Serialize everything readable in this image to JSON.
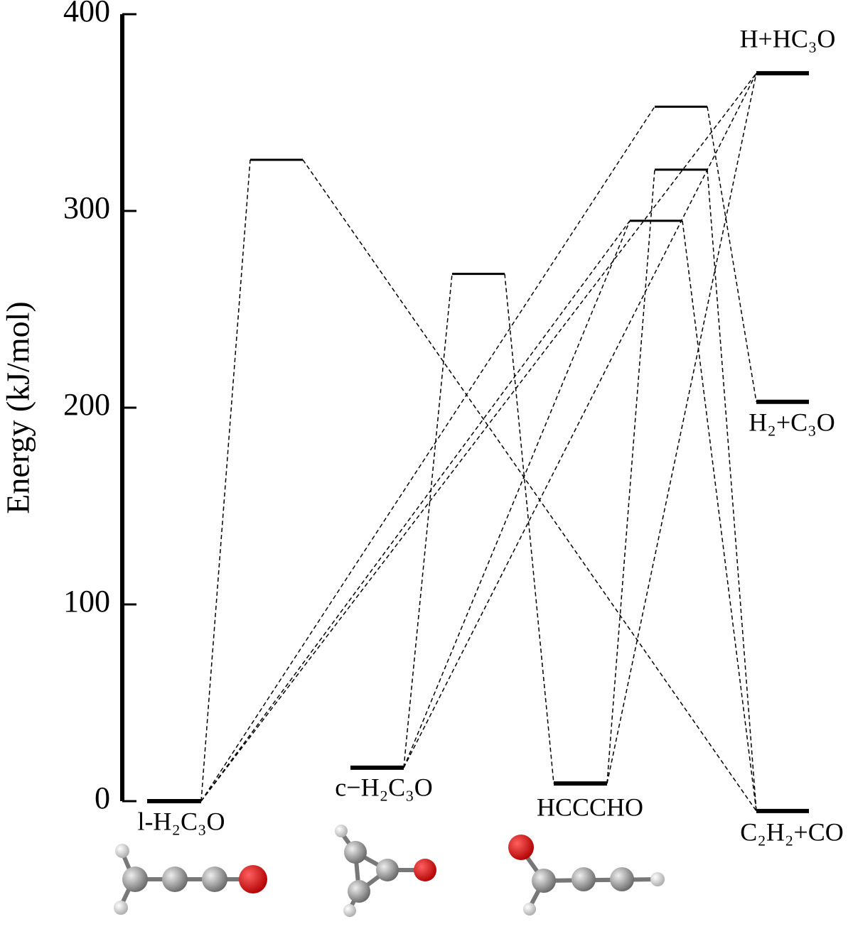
{
  "chart_data": {
    "type": "energy-level",
    "y_label": "Energy (kJ/mol)",
    "ylim": [
      0,
      400
    ],
    "yticks": [
      0,
      100,
      200,
      300,
      400
    ],
    "levels": [
      {
        "label": "l‑H₂C₃O",
        "energy": 0
      },
      {
        "energy": 326
      },
      {
        "label": "c−H₂C₃O",
        "energy": 17
      },
      {
        "energy": 268
      },
      {
        "label": "HCCCHO",
        "energy": 9
      },
      {
        "energy": 295
      },
      {
        "energy": 321
      },
      {
        "energy": 353
      },
      {
        "label": "H+HC₃O",
        "energy": 370
      },
      {
        "label": "H₂+C₃O",
        "energy": 203
      },
      {
        "label": "C₂H₂+CO",
        "energy": -5
      }
    ],
    "links": [
      [
        0,
        1
      ],
      [
        1,
        10
      ],
      [
        0,
        7
      ],
      [
        7,
        9
      ],
      [
        0,
        8
      ],
      [
        0,
        5
      ],
      [
        5,
        10
      ],
      [
        2,
        3
      ],
      [
        3,
        4
      ],
      [
        2,
        5
      ],
      [
        2,
        8
      ],
      [
        4,
        6
      ],
      [
        6,
        10
      ],
      [
        4,
        8
      ]
    ]
  }
}
